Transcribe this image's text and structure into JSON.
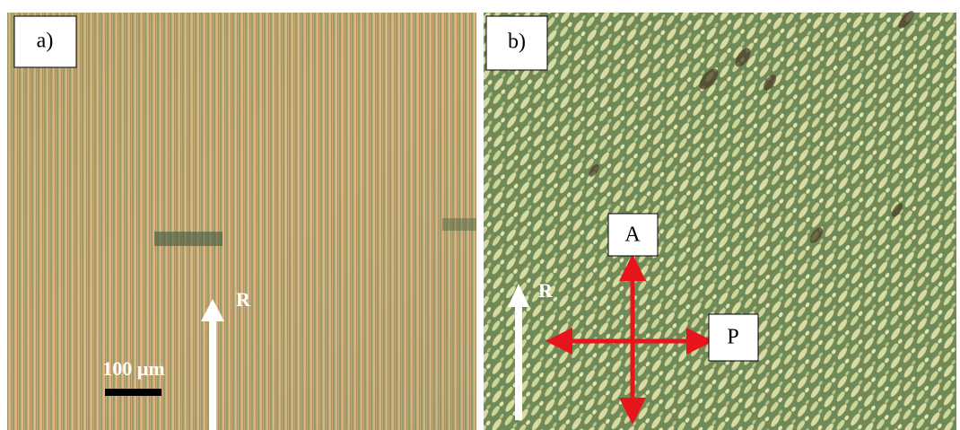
{
  "panels": [
    {
      "label": "a)",
      "arrow_label": "R",
      "scale_bar": "100 µm"
    },
    {
      "label": "b)",
      "arrow_label": "R",
      "polarizer_labels": {
        "analyzer": "A",
        "polarizer": "P"
      }
    }
  ]
}
